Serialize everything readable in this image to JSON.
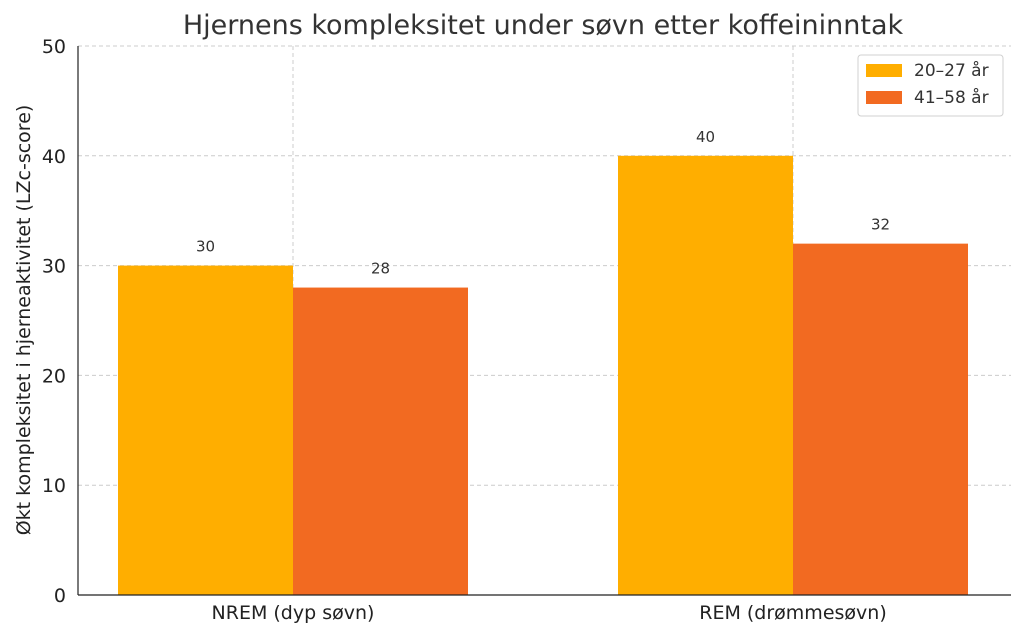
{
  "chart_data": {
    "type": "bar",
    "title": "Hjernens kompleksitet under søvn etter koffeininntak",
    "xlabel": "",
    "ylabel": "Økt kompleksitet i hjerneaktivitet (LZc-score)",
    "categories": [
      "NREM (dyp søvn)",
      "REM (drømmesøvn)"
    ],
    "series": [
      {
        "name": "20–27 år",
        "values": [
          30,
          40
        ],
        "color": "#FFAE00"
      },
      {
        "name": "41–58 år",
        "values": [
          28,
          32
        ],
        "color": "#F26A21"
      }
    ],
    "ylim": [
      0,
      50
    ],
    "yticks": [
      0,
      10,
      20,
      30,
      40,
      50
    ],
    "grid": true,
    "legend": "top-right"
  }
}
